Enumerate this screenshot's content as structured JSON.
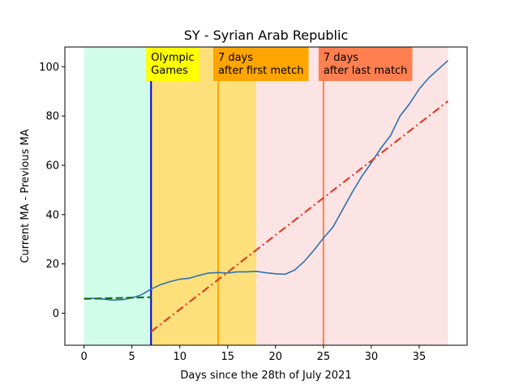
{
  "chart_data": {
    "type": "line",
    "title": "SY - Syrian Arab Republic",
    "xlabel": "Days since the 28th of July 2021",
    "ylabel": "Current MA - Previous MA",
    "xlim": [
      -2,
      40
    ],
    "ylim": [
      -13,
      108
    ],
    "xticks": [
      0,
      5,
      10,
      15,
      20,
      25,
      30,
      35
    ],
    "yticks": [
      0,
      20,
      40,
      60,
      80,
      100
    ],
    "grid": false,
    "regions": [
      {
        "from": 0,
        "to": 7,
        "color": "#d2fcea"
      },
      {
        "from": 7,
        "to": 18,
        "color": "#fde07a"
      },
      {
        "from": 18,
        "to": 38,
        "color": "#fde4e4"
      }
    ],
    "vlines": [
      {
        "x": 7,
        "color": "#0000cc"
      },
      {
        "x": 14,
        "color": "#ffa500"
      },
      {
        "x": 25,
        "color": "#ff7f50"
      }
    ],
    "annotations": [
      {
        "x": 7,
        "lines": [
          "Olympic",
          "Games"
        ],
        "bg": "#ffff00"
      },
      {
        "x": 14,
        "lines": [
          "7 days",
          "after first metch"
        ],
        "bg": "#ffa500"
      },
      {
        "x": 25,
        "lines": [
          "7 days",
          "after last match"
        ],
        "bg": "#ff7f50"
      }
    ],
    "series": [
      {
        "style": "solid",
        "color": "#2c72b0",
        "x": [
          0,
          1,
          2,
          3,
          4,
          5,
          6,
          7,
          8,
          9,
          10,
          11,
          12,
          13,
          14,
          15,
          16,
          17,
          18,
          19,
          20,
          21,
          22,
          23,
          24,
          25,
          26,
          27,
          28,
          29,
          30,
          31,
          32,
          33,
          34,
          35,
          36,
          37,
          38
        ],
        "y": [
          6.0,
          6.0,
          5.7,
          5.3,
          5.5,
          6.2,
          7.5,
          9.8,
          11.6,
          12.8,
          13.8,
          14.2,
          15.3,
          16.3,
          16.5,
          16.3,
          16.8,
          16.8,
          17.0,
          16.4,
          16.0,
          15.8,
          17.5,
          21.0,
          25.5,
          30.5,
          35.0,
          42.0,
          49.0,
          55.5,
          61.0,
          67.0,
          72.0,
          80.0,
          85.0,
          91.0,
          95.5,
          99.0,
          102.5
        ]
      },
      {
        "style": "dashed",
        "color": "#1a6b1a",
        "x": [
          0,
          7
        ],
        "y": [
          5.8,
          6.5
        ]
      },
      {
        "style": "dashdot",
        "color": "#d9402a",
        "x": [
          7,
          38
        ],
        "y": [
          -7.5,
          86
        ]
      }
    ]
  }
}
